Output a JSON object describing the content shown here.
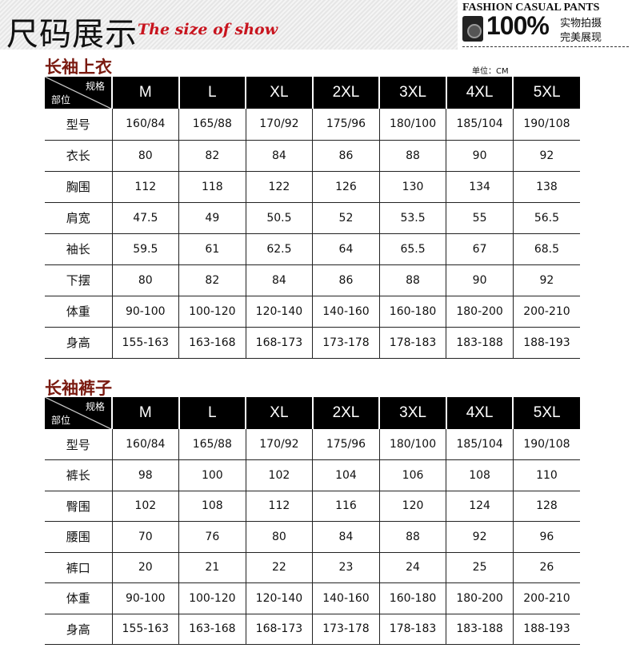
{
  "banner": {
    "title": "尺码展示",
    "subtitle": "The size of show",
    "brand": "FASHION CASUAL PANTS",
    "percent": "100%",
    "line1": "实物拍摄",
    "line2": "完美展现"
  },
  "unit": "单位：CM",
  "corner": {
    "top": "规格",
    "bottom": "部位"
  },
  "sizes": [
    "M",
    "L",
    "XL",
    "2XL",
    "3XL",
    "4XL",
    "5XL"
  ],
  "tops": {
    "title": "长袖上衣",
    "rows": [
      [
        "型号",
        "160/84",
        "165/88",
        "170/92",
        "175/96",
        "180/100",
        "185/104",
        "190/108"
      ],
      [
        "衣长",
        "80",
        "82",
        "84",
        "86",
        "88",
        "90",
        "92"
      ],
      [
        "胸围",
        "112",
        "118",
        "122",
        "126",
        "130",
        "134",
        "138"
      ],
      [
        "肩宽",
        "47.5",
        "49",
        "50.5",
        "52",
        "53.5",
        "55",
        "56.5"
      ],
      [
        "袖长",
        "59.5",
        "61",
        "62.5",
        "64",
        "65.5",
        "67",
        "68.5"
      ],
      [
        "下摆",
        "80",
        "82",
        "84",
        "86",
        "88",
        "90",
        "92"
      ],
      [
        "体重",
        "90-100",
        "100-120",
        "120-140",
        "140-160",
        "160-180",
        "180-200",
        "200-210"
      ],
      [
        "身高",
        "155-163",
        "163-168",
        "168-173",
        "173-178",
        "178-183",
        "183-188",
        "188-193"
      ]
    ]
  },
  "pants": {
    "title": "长袖裤子",
    "rows": [
      [
        "型号",
        "160/84",
        "165/88",
        "170/92",
        "175/96",
        "180/100",
        "185/104",
        "190/108"
      ],
      [
        "裤长",
        "98",
        "100",
        "102",
        "104",
        "106",
        "108",
        "110"
      ],
      [
        "臀围",
        "102",
        "108",
        "112",
        "116",
        "120",
        "124",
        "128"
      ],
      [
        "腰围",
        "70",
        "76",
        "80",
        "84",
        "88",
        "92",
        "96"
      ],
      [
        "裤口",
        "20",
        "21",
        "22",
        "23",
        "24",
        "25",
        "26"
      ],
      [
        "体重",
        "90-100",
        "100-120",
        "120-140",
        "140-160",
        "160-180",
        "180-200",
        "200-210"
      ],
      [
        "身高",
        "155-163",
        "163-168",
        "168-173",
        "173-178",
        "178-183",
        "183-188",
        "188-193"
      ]
    ]
  }
}
